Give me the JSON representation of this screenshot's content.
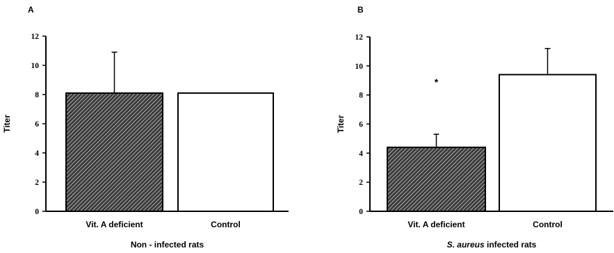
{
  "chart_data": [
    {
      "panel": "A",
      "type": "bar",
      "categories": [
        "Vit. A deficient",
        "Control"
      ],
      "values": [
        8.1,
        8.1
      ],
      "error_plus": [
        2.8,
        0
      ],
      "bar_fills": [
        "hatched",
        "white"
      ],
      "ylabel": "Titer",
      "ylim": [
        0,
        12
      ],
      "yticks": [
        "0",
        "2",
        "4",
        "6",
        "8",
        "10",
        "12"
      ],
      "xtitle": {
        "pre": "",
        "italic": "",
        "post": "Non - infected rats"
      },
      "annotations": []
    },
    {
      "panel": "B",
      "type": "bar",
      "categories": [
        "Vit. A deficient",
        "Control"
      ],
      "values": [
        4.4,
        9.4
      ],
      "error_plus": [
        0.9,
        1.8
      ],
      "bar_fills": [
        "hatched",
        "white"
      ],
      "ylabel": "Titer",
      "ylim": [
        0,
        12
      ],
      "yticks": [
        "0",
        "2",
        "4",
        "6",
        "8",
        "10",
        "12"
      ],
      "xtitle": {
        "pre": "",
        "italic": "S. aureus",
        "post": " infected rats"
      },
      "annotations": [
        {
          "text": "*",
          "x_category": 0,
          "y": 8.9
        }
      ]
    }
  ]
}
